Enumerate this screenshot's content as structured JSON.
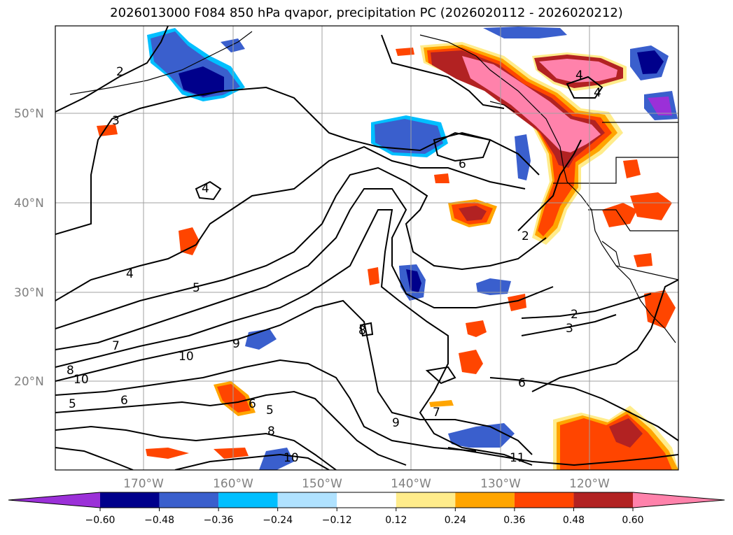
{
  "title": "2026013000 F084 850 hPa qvapor, precipitation PC (2026020112 - 2026020212)",
  "lat_labels": [
    "50°N",
    "40°N",
    "30°N",
    "20°N"
  ],
  "lon_labels": [
    "170°W",
    "160°W",
    "150°W",
    "140°W",
    "130°W",
    "120°W"
  ],
  "colorbar": {
    "ticks": [
      "−0.60",
      "−0.48",
      "−0.36",
      "−0.24",
      "−0.12",
      "0.12",
      "0.24",
      "0.36",
      "0.48",
      "0.60"
    ],
    "colors": [
      "#9b30d8",
      "#00008b",
      "#3a5fcd",
      "#00bfff",
      "#b0e2ff",
      "#ffffff",
      "#ffec8b",
      "#ffa500",
      "#ff4500",
      "#b22222",
      "#ff82ab"
    ]
  },
  "contour_labels": [
    "2",
    "3",
    "4",
    "4",
    "4",
    "5",
    "5",
    "6",
    "6",
    "6",
    "7",
    "7",
    "8",
    "8",
    "9",
    "10",
    "10",
    "11",
    "2",
    "3",
    "2",
    "4",
    "5",
    "6",
    "8",
    "9",
    "10"
  ],
  "shading": {
    "negative_colors": [
      "#00008b",
      "#3a5fcd",
      "#00bfff"
    ],
    "positive_colors": [
      "#ffec8b",
      "#ffa500",
      "#ff4500",
      "#b22222",
      "#ff82ab"
    ]
  }
}
